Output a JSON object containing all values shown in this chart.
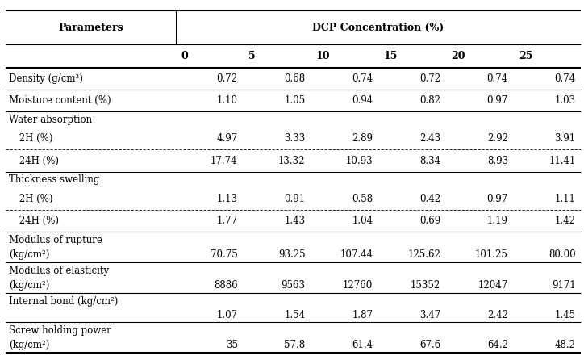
{
  "col_header_1": "Parameters",
  "col_header_2": "DCP Concentration (%)",
  "dcp_levels": [
    "0",
    "5",
    "10",
    "15",
    "20",
    "25"
  ],
  "rows": [
    {
      "label": "Density (g/cm³)",
      "sublabel": null,
      "values": [
        "0.72",
        "0.68",
        "0.74",
        "0.72",
        "0.74",
        "0.74"
      ],
      "indent": false,
      "group_header": false,
      "line_below": "solid"
    },
    {
      "label": "Moisture content (%)",
      "sublabel": null,
      "values": [
        "1.10",
        "1.05",
        "0.94",
        "0.82",
        "0.97",
        "1.03"
      ],
      "indent": false,
      "group_header": false,
      "line_below": "solid"
    },
    {
      "label": "Water absorption",
      "sublabel": null,
      "values": [
        "",
        "",
        "",
        "",
        "",
        ""
      ],
      "indent": false,
      "group_header": true,
      "line_below": null
    },
    {
      "label": " 2H (%)",
      "sublabel": null,
      "values": [
        "4.97",
        "3.33",
        "2.89",
        "2.43",
        "2.92",
        "3.91"
      ],
      "indent": true,
      "group_header": false,
      "line_below": "dashed"
    },
    {
      "label": " 24H (%)",
      "sublabel": null,
      "values": [
        "17.74",
        "13.32",
        "10.93",
        "8.34",
        "8.93",
        "11.41"
      ],
      "indent": true,
      "group_header": false,
      "line_below": "solid"
    },
    {
      "label": "Thickness swelling",
      "sublabel": null,
      "values": [
        "",
        "",
        "",
        "",
        "",
        ""
      ],
      "indent": false,
      "group_header": true,
      "line_below": null
    },
    {
      "label": " 2H (%)",
      "sublabel": null,
      "values": [
        "1.13",
        "0.91",
        "0.58",
        "0.42",
        "0.97",
        "1.11"
      ],
      "indent": true,
      "group_header": false,
      "line_below": "dashed"
    },
    {
      "label": " 24H (%)",
      "sublabel": null,
      "values": [
        "1.77",
        "1.43",
        "1.04",
        "0.69",
        "1.19",
        "1.42"
      ],
      "indent": true,
      "group_header": false,
      "line_below": "solid"
    },
    {
      "label": "Modulus of rupture",
      "sublabel": "(kg/cm²)",
      "values": [
        "70.75",
        "93.25",
        "107.44",
        "125.62",
        "101.25",
        "80.00"
      ],
      "indent": false,
      "group_header": false,
      "line_below": "solid"
    },
    {
      "label": "Modulus of elasticity",
      "sublabel": "(kg/cm²)",
      "values": [
        "8886",
        "9563",
        "12760",
        "15352",
        "12047",
        "9171"
      ],
      "indent": false,
      "group_header": false,
      "line_below": "solid"
    },
    {
      "label": "Internal bond (kg/cm²)",
      "sublabel": "",
      "values": [
        "1.07",
        "1.54",
        "1.87",
        "3.47",
        "2.42",
        "1.45"
      ],
      "indent": false,
      "group_header": false,
      "line_below": "solid"
    },
    {
      "label": "Screw holding power",
      "sublabel": "(kg/cm²)",
      "values": [
        "35",
        "57.8",
        "61.4",
        "67.6",
        "64.2",
        "48.2"
      ],
      "indent": false,
      "group_header": false,
      "line_below": "solid_thick"
    }
  ],
  "bg_color": "#ffffff",
  "text_color": "#000000",
  "line_color": "#000000",
  "font_size": 8.5,
  "header_font_size": 9.0
}
